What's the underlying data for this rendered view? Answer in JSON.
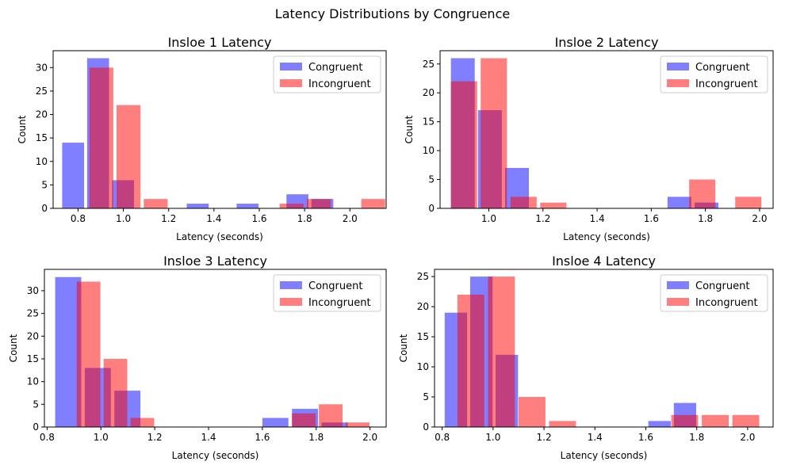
{
  "figure": {
    "title": "Latency Distributions by Congruence"
  },
  "colors": {
    "congruent": "#0000ff",
    "incongruent": "#ff0000",
    "bar_opacity": 0.5
  },
  "chart_data": [
    {
      "type": "bar",
      "title": "Insloe 1 Latency",
      "xlabel": "Latency (seconds)",
      "ylabel": "Count",
      "xlim": [
        0.69,
        2.16
      ],
      "ylim": [
        0,
        33.6
      ],
      "xticks": [
        0.8,
        1.0,
        1.2,
        1.4,
        1.6,
        1.8,
        2.0
      ],
      "xtick_labels": [
        "0.8",
        "1.0",
        "1.2",
        "1.4",
        "1.6",
        "1.8",
        "2.0"
      ],
      "yticks": [
        0,
        5,
        10,
        15,
        20,
        25,
        30
      ],
      "ytick_labels": [
        "0",
        "5",
        "10",
        "15",
        "20",
        "25",
        "30"
      ],
      "legend_position": "top-right",
      "series": [
        {
          "name": "Congruent",
          "color_key": "congruent",
          "bars": [
            {
              "x0": 0.73,
              "x1": 0.84,
              "value": 14
            },
            {
              "x0": 0.84,
              "x1": 0.95,
              "value": 32
            },
            {
              "x0": 0.95,
              "x1": 1.06,
              "value": 6
            },
            {
              "x0": 1.06,
              "x1": 1.17,
              "value": 0
            },
            {
              "x0": 1.17,
              "x1": 1.28,
              "value": 0
            },
            {
              "x0": 1.28,
              "x1": 1.39,
              "value": 1
            },
            {
              "x0": 1.39,
              "x1": 1.5,
              "value": 0
            },
            {
              "x0": 1.5,
              "x1": 1.61,
              "value": 1
            },
            {
              "x0": 1.61,
              "x1": 1.72,
              "value": 0
            },
            {
              "x0": 1.72,
              "x1": 1.83,
              "value": 3
            },
            {
              "x0": 1.83,
              "x1": 1.94,
              "value": 2
            }
          ]
        },
        {
          "name": "Incongruent",
          "color_key": "incongruent",
          "bars": [
            {
              "x0": 0.85,
              "x1": 0.97,
              "value": 30
            },
            {
              "x0": 0.97,
              "x1": 1.09,
              "value": 22
            },
            {
              "x0": 1.09,
              "x1": 1.21,
              "value": 2
            },
            {
              "x0": 1.21,
              "x1": 1.33,
              "value": 0
            },
            {
              "x0": 1.33,
              "x1": 1.45,
              "value": 0
            },
            {
              "x0": 1.45,
              "x1": 1.57,
              "value": 0
            },
            {
              "x0": 1.57,
              "x1": 1.69,
              "value": 0
            },
            {
              "x0": 1.69,
              "x1": 1.81,
              "value": 1
            },
            {
              "x0": 1.81,
              "x1": 1.93,
              "value": 2
            },
            {
              "x0": 1.93,
              "x1": 2.05,
              "value": 0
            },
            {
              "x0": 2.05,
              "x1": 2.17,
              "value": 2
            }
          ]
        }
      ]
    },
    {
      "type": "bar",
      "title": "Insloe 2 Latency",
      "xlabel": "Latency (seconds)",
      "ylabel": "Count",
      "xlim": [
        0.82,
        2.05
      ],
      "ylim": [
        0,
        27.3
      ],
      "xticks": [
        1.0,
        1.2,
        1.4,
        1.6,
        1.8,
        2.0
      ],
      "xtick_labels": [
        "1.0",
        "1.2",
        "1.4",
        "1.6",
        "1.8",
        "2.0"
      ],
      "yticks": [
        0,
        5,
        10,
        15,
        20,
        25
      ],
      "ytick_labels": [
        "0",
        "5",
        "10",
        "15",
        "20",
        "25"
      ],
      "legend_position": "top-right",
      "series": [
        {
          "name": "Congruent",
          "color_key": "congruent",
          "bars": [
            {
              "x0": 0.86,
              "x1": 0.96,
              "value": 26
            },
            {
              "x0": 0.96,
              "x1": 1.06,
              "value": 17
            },
            {
              "x0": 1.06,
              "x1": 1.16,
              "value": 7
            },
            {
              "x0": 1.16,
              "x1": 1.26,
              "value": 0
            },
            {
              "x0": 1.26,
              "x1": 1.36,
              "value": 0
            },
            {
              "x0": 1.36,
              "x1": 1.46,
              "value": 0
            },
            {
              "x0": 1.46,
              "x1": 1.56,
              "value": 0
            },
            {
              "x0": 1.56,
              "x1": 1.66,
              "value": 0
            },
            {
              "x0": 1.66,
              "x1": 1.76,
              "value": 2
            },
            {
              "x0": 1.76,
              "x1": 1.86,
              "value": 1
            }
          ]
        },
        {
          "name": "Incongruent",
          "color_key": "incongruent",
          "bars": [
            {
              "x0": 0.86,
              "x1": 0.97,
              "value": 22
            },
            {
              "x0": 0.97,
              "x1": 1.08,
              "value": 26
            },
            {
              "x0": 1.08,
              "x1": 1.19,
              "value": 2
            },
            {
              "x0": 1.19,
              "x1": 1.3,
              "value": 1
            },
            {
              "x0": 1.3,
              "x1": 1.41,
              "value": 0
            },
            {
              "x0": 1.41,
              "x1": 1.52,
              "value": 0
            },
            {
              "x0": 1.52,
              "x1": 1.63,
              "value": 0
            },
            {
              "x0": 1.63,
              "x1": 1.74,
              "value": 0
            },
            {
              "x0": 1.74,
              "x1": 1.85,
              "value": 5
            },
            {
              "x0": 1.85,
              "x1": 1.96,
              "value": 0
            },
            {
              "x0": 1.91,
              "x1": 2.02,
              "value": 2
            }
          ]
        }
      ]
    },
    {
      "type": "bar",
      "title": "Insloe 3 Latency",
      "xlabel": "Latency (seconds)",
      "ylabel": "Count",
      "xlim": [
        0.79,
        2.06
      ],
      "ylim": [
        0,
        34.7
      ],
      "xticks": [
        0.8,
        1.0,
        1.2,
        1.4,
        1.6,
        1.8,
        2.0
      ],
      "xtick_labels": [
        "0.8",
        "1.0",
        "1.2",
        "1.4",
        "1.6",
        "1.8",
        "2.0"
      ],
      "yticks": [
        0,
        5,
        10,
        15,
        20,
        25,
        30
      ],
      "ytick_labels": [
        "0",
        "5",
        "10",
        "15",
        "20",
        "25",
        "30"
      ],
      "legend_position": "top-right",
      "series": [
        {
          "name": "Congruent",
          "color_key": "congruent",
          "bars": [
            {
              "x0": 0.83,
              "x1": 0.94,
              "value": 33
            },
            {
              "x0": 0.94,
              "x1": 1.05,
              "value": 13
            },
            {
              "x0": 1.05,
              "x1": 1.16,
              "value": 8
            },
            {
              "x0": 1.16,
              "x1": 1.27,
              "value": 0
            },
            {
              "x0": 1.27,
              "x1": 1.38,
              "value": 0
            },
            {
              "x0": 1.38,
              "x1": 1.49,
              "value": 0
            },
            {
              "x0": 1.49,
              "x1": 1.6,
              "value": 0
            },
            {
              "x0": 1.6,
              "x1": 1.71,
              "value": 2
            },
            {
              "x0": 1.71,
              "x1": 1.82,
              "value": 4
            },
            {
              "x0": 1.82,
              "x1": 1.93,
              "value": 1
            }
          ]
        },
        {
          "name": "Incongruent",
          "color_key": "incongruent",
          "bars": [
            {
              "x0": 0.91,
              "x1": 1.01,
              "value": 32
            },
            {
              "x0": 1.01,
              "x1": 1.11,
              "value": 15
            },
            {
              "x0": 1.11,
              "x1": 1.21,
              "value": 2
            },
            {
              "x0": 1.21,
              "x1": 1.31,
              "value": 0
            },
            {
              "x0": 1.31,
              "x1": 1.41,
              "value": 0
            },
            {
              "x0": 1.41,
              "x1": 1.51,
              "value": 0
            },
            {
              "x0": 1.51,
              "x1": 1.61,
              "value": 0
            },
            {
              "x0": 1.61,
              "x1": 1.71,
              "value": 0
            },
            {
              "x0": 1.71,
              "x1": 1.81,
              "value": 3
            },
            {
              "x0": 1.81,
              "x1": 1.91,
              "value": 5
            },
            {
              "x0": 1.91,
              "x1": 2.01,
              "value": 1
            }
          ]
        }
      ]
    },
    {
      "type": "bar",
      "title": "Insloe 4 Latency",
      "xlabel": "Latency (seconds)",
      "ylabel": "Count",
      "xlim": [
        0.77,
        2.1
      ],
      "ylim": [
        0,
        26.2
      ],
      "xticks": [
        0.8,
        1.0,
        1.2,
        1.4,
        1.6,
        1.8,
        2.0
      ],
      "xtick_labels": [
        "0.8",
        "1.0",
        "1.2",
        "1.4",
        "1.6",
        "1.8",
        "2.0"
      ],
      "yticks": [
        0,
        5,
        10,
        15,
        20,
        25
      ],
      "ytick_labels": [
        "0",
        "5",
        "10",
        "15",
        "20",
        "25"
      ],
      "legend_position": "top-right",
      "series": [
        {
          "name": "Congruent",
          "color_key": "congruent",
          "bars": [
            {
              "x0": 0.81,
              "x1": 0.91,
              "value": 19
            },
            {
              "x0": 0.91,
              "x1": 1.01,
              "value": 25
            },
            {
              "x0": 1.01,
              "x1": 1.11,
              "value": 12
            },
            {
              "x0": 1.11,
              "x1": 1.21,
              "value": 0
            },
            {
              "x0": 1.21,
              "x1": 1.31,
              "value": 0
            },
            {
              "x0": 1.31,
              "x1": 1.41,
              "value": 0
            },
            {
              "x0": 1.41,
              "x1": 1.51,
              "value": 0
            },
            {
              "x0": 1.51,
              "x1": 1.61,
              "value": 0
            },
            {
              "x0": 1.61,
              "x1": 1.71,
              "value": 1
            },
            {
              "x0": 1.71,
              "x1": 1.81,
              "value": 4
            }
          ]
        },
        {
          "name": "Incongruent",
          "color_key": "incongruent",
          "bars": [
            {
              "x0": 0.86,
              "x1": 0.98,
              "value": 22
            },
            {
              "x0": 0.98,
              "x1": 1.1,
              "value": 25
            },
            {
              "x0": 1.1,
              "x1": 1.22,
              "value": 5
            },
            {
              "x0": 1.22,
              "x1": 1.34,
              "value": 1
            },
            {
              "x0": 1.34,
              "x1": 1.46,
              "value": 0
            },
            {
              "x0": 1.46,
              "x1": 1.58,
              "value": 0
            },
            {
              "x0": 1.58,
              "x1": 1.7,
              "value": 0
            },
            {
              "x0": 1.7,
              "x1": 1.82,
              "value": 2
            },
            {
              "x0": 1.82,
              "x1": 1.94,
              "value": 2
            },
            {
              "x0": 1.94,
              "x1": 2.06,
              "value": 2
            }
          ]
        }
      ]
    }
  ]
}
